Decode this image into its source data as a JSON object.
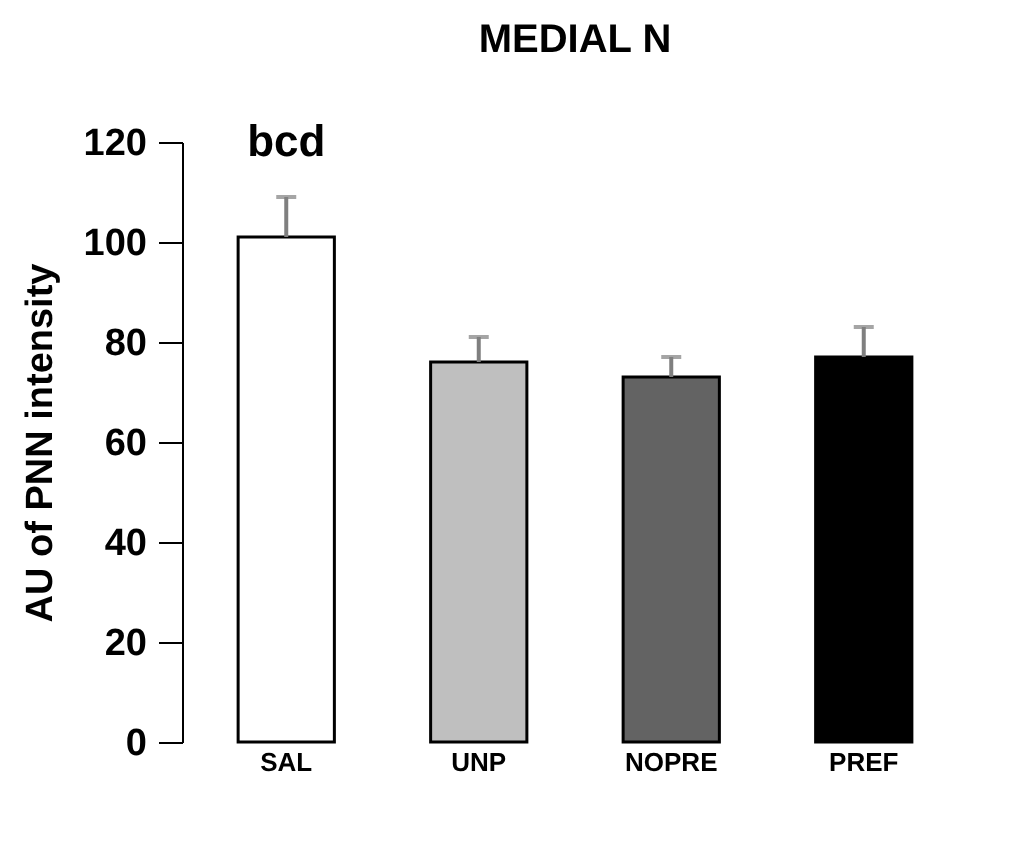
{
  "chart_data": {
    "type": "bar",
    "title": "MEDIAL N",
    "ylabel": "AU of PNN intensity",
    "categories": [
      "SAL",
      "UNP",
      "NOPRE",
      "PREF"
    ],
    "values": [
      101,
      76,
      73,
      77
    ],
    "colors": [
      "#ffffff",
      "#bfbfbf",
      "#636363",
      "#000000"
    ],
    "errors": [
      [
        101,
        109
      ],
      [
        76,
        81
      ],
      [
        73,
        77
      ],
      [
        77,
        83
      ]
    ],
    "ylim": [
      0,
      120
    ],
    "yticks": [
      0,
      20,
      40,
      60,
      80,
      100,
      120
    ],
    "grid": false,
    "annotations": [
      "bcd"
    ]
  }
}
